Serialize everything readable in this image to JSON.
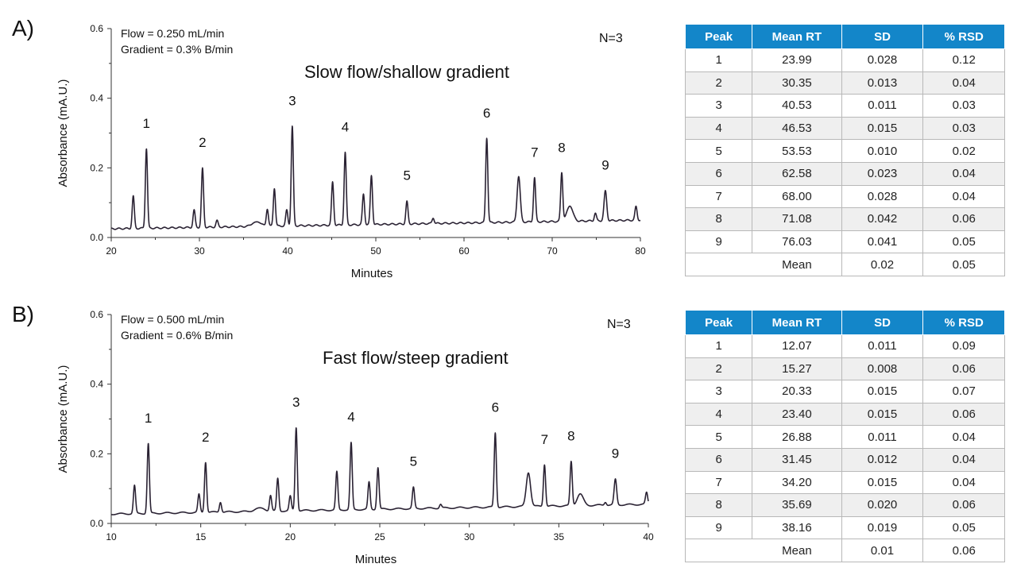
{
  "chart_data": [
    {
      "type": "line",
      "panel_label": "A)",
      "annotations": {
        "flow": "Flow = 0.250 mL/min",
        "gradient": "Gradient = 0.3% B/min",
        "n": "N=3",
        "title": "Slow flow/shallow gradient"
      },
      "xlabel": "Minutes",
      "ylabel": "Absorbance (mA.U.)",
      "xlim": [
        20,
        80
      ],
      "ylim": [
        0,
        0.6
      ],
      "xticks": [
        "20",
        "30",
        "40",
        "50",
        "60",
        "70",
        "80"
      ],
      "yticks": [
        "0.0",
        "0.2",
        "0.4",
        "0.6"
      ],
      "grid": false,
      "line_color": "#2a2233",
      "baseline": [
        0.025,
        0.05
      ],
      "peaks": [
        {
          "x": 22.5,
          "y": 0.12,
          "w": 0.12
        },
        {
          "x": 23.99,
          "y": 0.255,
          "w": 0.12,
          "label": "1"
        },
        {
          "x": 29.4,
          "y": 0.08,
          "w": 0.12
        },
        {
          "x": 30.35,
          "y": 0.2,
          "w": 0.12,
          "label": "2"
        },
        {
          "x": 32.0,
          "y": 0.05,
          "w": 0.12
        },
        {
          "x": 36.5,
          "y": 0.045,
          "w": 0.5
        },
        {
          "x": 37.7,
          "y": 0.08,
          "w": 0.12
        },
        {
          "x": 38.5,
          "y": 0.14,
          "w": 0.12
        },
        {
          "x": 39.9,
          "y": 0.08,
          "w": 0.12
        },
        {
          "x": 40.53,
          "y": 0.32,
          "w": 0.12,
          "label": "3"
        },
        {
          "x": 45.1,
          "y": 0.16,
          "w": 0.12
        },
        {
          "x": 46.53,
          "y": 0.245,
          "w": 0.12,
          "label": "4"
        },
        {
          "x": 48.6,
          "y": 0.125,
          "w": 0.12
        },
        {
          "x": 49.5,
          "y": 0.178,
          "w": 0.12
        },
        {
          "x": 53.53,
          "y": 0.105,
          "w": 0.12,
          "label": "5"
        },
        {
          "x": 56.5,
          "y": 0.055,
          "w": 0.12
        },
        {
          "x": 62.58,
          "y": 0.285,
          "w": 0.12,
          "label": "6"
        },
        {
          "x": 66.2,
          "y": 0.175,
          "w": 0.18
        },
        {
          "x": 68.0,
          "y": 0.172,
          "w": 0.12,
          "label": "7"
        },
        {
          "x": 71.08,
          "y": 0.185,
          "w": 0.12,
          "label": "8"
        },
        {
          "x": 72.0,
          "y": 0.09,
          "w": 0.35
        },
        {
          "x": 74.9,
          "y": 0.07,
          "w": 0.12
        },
        {
          "x": 76.03,
          "y": 0.135,
          "w": 0.15,
          "label": "9"
        },
        {
          "x": 79.5,
          "y": 0.09,
          "w": 0.12
        }
      ]
    },
    {
      "type": "line",
      "panel_label": "B)",
      "annotations": {
        "flow": "Flow = 0.500 mL/min",
        "gradient": "Gradient = 0.6% B/min",
        "n": "N=3",
        "title": "Fast flow/steep gradient"
      },
      "xlabel": "Minutes",
      "ylabel": "Absorbance (mA.U.)",
      "xlim": [
        10,
        40
      ],
      "ylim": [
        0,
        0.6
      ],
      "xticks": [
        "10",
        "15",
        "20",
        "25",
        "30",
        "35",
        "40"
      ],
      "yticks": [
        "0.0",
        "0.2",
        "0.4",
        "0.6"
      ],
      "grid": false,
      "line_color": "#2a2233",
      "baseline": [
        0.027,
        0.055
      ],
      "peaks": [
        {
          "x": 11.3,
          "y": 0.11,
          "w": 0.06
        },
        {
          "x": 12.07,
          "y": 0.23,
          "w": 0.06,
          "label": "1"
        },
        {
          "x": 14.9,
          "y": 0.085,
          "w": 0.06
        },
        {
          "x": 15.27,
          "y": 0.175,
          "w": 0.06,
          "label": "2"
        },
        {
          "x": 16.1,
          "y": 0.06,
          "w": 0.06
        },
        {
          "x": 18.3,
          "y": 0.045,
          "w": 0.25
        },
        {
          "x": 18.9,
          "y": 0.08,
          "w": 0.06
        },
        {
          "x": 19.3,
          "y": 0.13,
          "w": 0.06
        },
        {
          "x": 20.0,
          "y": 0.08,
          "w": 0.06
        },
        {
          "x": 20.33,
          "y": 0.275,
          "w": 0.06,
          "label": "3"
        },
        {
          "x": 22.6,
          "y": 0.15,
          "w": 0.06
        },
        {
          "x": 23.4,
          "y": 0.233,
          "w": 0.06,
          "label": "4"
        },
        {
          "x": 24.4,
          "y": 0.12,
          "w": 0.06
        },
        {
          "x": 24.9,
          "y": 0.16,
          "w": 0.06
        },
        {
          "x": 26.88,
          "y": 0.105,
          "w": 0.06,
          "label": "5"
        },
        {
          "x": 28.4,
          "y": 0.055,
          "w": 0.06
        },
        {
          "x": 31.45,
          "y": 0.26,
          "w": 0.06,
          "label": "6"
        },
        {
          "x": 33.3,
          "y": 0.145,
          "w": 0.12
        },
        {
          "x": 34.2,
          "y": 0.168,
          "w": 0.06,
          "label": "7"
        },
        {
          "x": 35.69,
          "y": 0.178,
          "w": 0.06,
          "label": "8"
        },
        {
          "x": 36.2,
          "y": 0.085,
          "w": 0.17
        },
        {
          "x": 37.6,
          "y": 0.06,
          "w": 0.06
        },
        {
          "x": 38.16,
          "y": 0.128,
          "w": 0.07,
          "label": "9"
        },
        {
          "x": 39.9,
          "y": 0.09,
          "w": 0.06
        }
      ]
    }
  ],
  "tables": [
    {
      "headers": [
        "Peak",
        "Mean RT",
        "SD",
        "% RSD"
      ],
      "rows": [
        [
          "1",
          "23.99",
          "0.028",
          "0.12"
        ],
        [
          "2",
          "30.35",
          "0.013",
          "0.04"
        ],
        [
          "3",
          "40.53",
          "0.011",
          "0.03"
        ],
        [
          "4",
          "46.53",
          "0.015",
          "0.03"
        ],
        [
          "5",
          "53.53",
          "0.010",
          "0.02"
        ],
        [
          "6",
          "62.58",
          "0.023",
          "0.04"
        ],
        [
          "7",
          "68.00",
          "0.028",
          "0.04"
        ],
        [
          "8",
          "71.08",
          "0.042",
          "0.06"
        ],
        [
          "9",
          "76.03",
          "0.041",
          "0.05"
        ]
      ],
      "mean": {
        "label": "Mean",
        "sd": "0.02",
        "rsd": "0.05"
      }
    },
    {
      "headers": [
        "Peak",
        "Mean RT",
        "SD",
        "% RSD"
      ],
      "rows": [
        [
          "1",
          "12.07",
          "0.011",
          "0.09"
        ],
        [
          "2",
          "15.27",
          "0.008",
          "0.06"
        ],
        [
          "3",
          "20.33",
          "0.015",
          "0.07"
        ],
        [
          "4",
          "23.40",
          "0.015",
          "0.06"
        ],
        [
          "5",
          "26.88",
          "0.011",
          "0.04"
        ],
        [
          "6",
          "31.45",
          "0.012",
          "0.04"
        ],
        [
          "7",
          "34.20",
          "0.015",
          "0.04"
        ],
        [
          "8",
          "35.69",
          "0.020",
          "0.06"
        ],
        [
          "9",
          "38.16",
          "0.019",
          "0.05"
        ]
      ],
      "mean": {
        "label": "Mean",
        "sd": "0.01",
        "rsd": "0.06"
      }
    }
  ],
  "colors": {
    "table_header": "#1386c9",
    "row_alt": "#efefef"
  }
}
